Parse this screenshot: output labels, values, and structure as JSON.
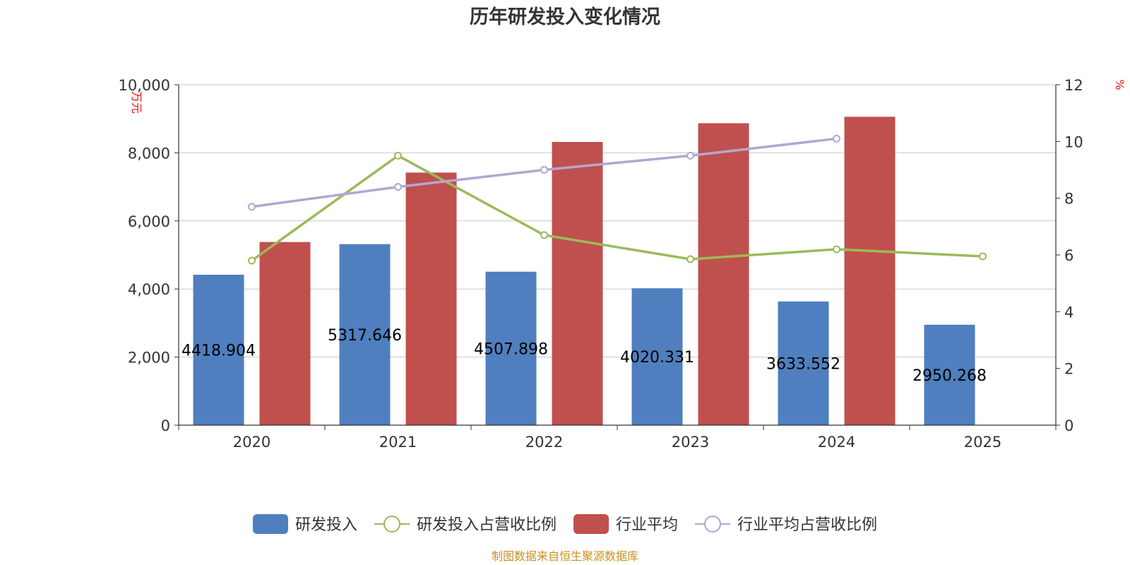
{
  "chart_data": {
    "type": "bar",
    "title": "历年研发投入变化情况",
    "categories": [
      "2020",
      "2021",
      "2022",
      "2023",
      "2024",
      "2025"
    ],
    "y_left": {
      "unit": "万元",
      "ylim": [
        0,
        10000
      ],
      "ticks": [
        0,
        2000,
        4000,
        6000,
        8000,
        10000
      ],
      "tick_labels": [
        "0",
        "2,000",
        "4,000",
        "6,000",
        "8,000",
        "10,000"
      ]
    },
    "y_right": {
      "unit": "%",
      "ylim": [
        0,
        12
      ],
      "ticks": [
        0,
        2,
        4,
        6,
        8,
        10,
        12
      ],
      "tick_labels": [
        "0",
        "2",
        "4",
        "6",
        "8",
        "10",
        "12"
      ]
    },
    "series": [
      {
        "name": "研发投入",
        "kind": "bar",
        "axis": "left",
        "color": "#4f7fbe",
        "values": [
          4418.904,
          5317.646,
          4507.898,
          4020.331,
          3633.552,
          2950.268
        ],
        "labels": [
          "4418.904",
          "5317.646",
          "4507.898",
          "4020.331",
          "3633.552",
          "2950.268"
        ]
      },
      {
        "name": "研发投入占营收比例",
        "kind": "line",
        "axis": "right",
        "color": "#9bbb59",
        "values": [
          5.8,
          9.5,
          6.7,
          5.85,
          6.2,
          5.95
        ]
      },
      {
        "name": "行业平均",
        "kind": "bar",
        "axis": "left",
        "color": "#c0504d",
        "values": [
          5380,
          7420,
          8320,
          8870,
          9060,
          null
        ]
      },
      {
        "name": "行业平均占营收比例",
        "kind": "line",
        "axis": "right",
        "color": "#b3a6d0",
        "values": [
          7.7,
          8.4,
          9.0,
          9.5,
          10.1,
          null
        ]
      }
    ],
    "grid": true,
    "legend_position": "bottom-center",
    "source": "制图数据来自恒生聚源数据库"
  }
}
